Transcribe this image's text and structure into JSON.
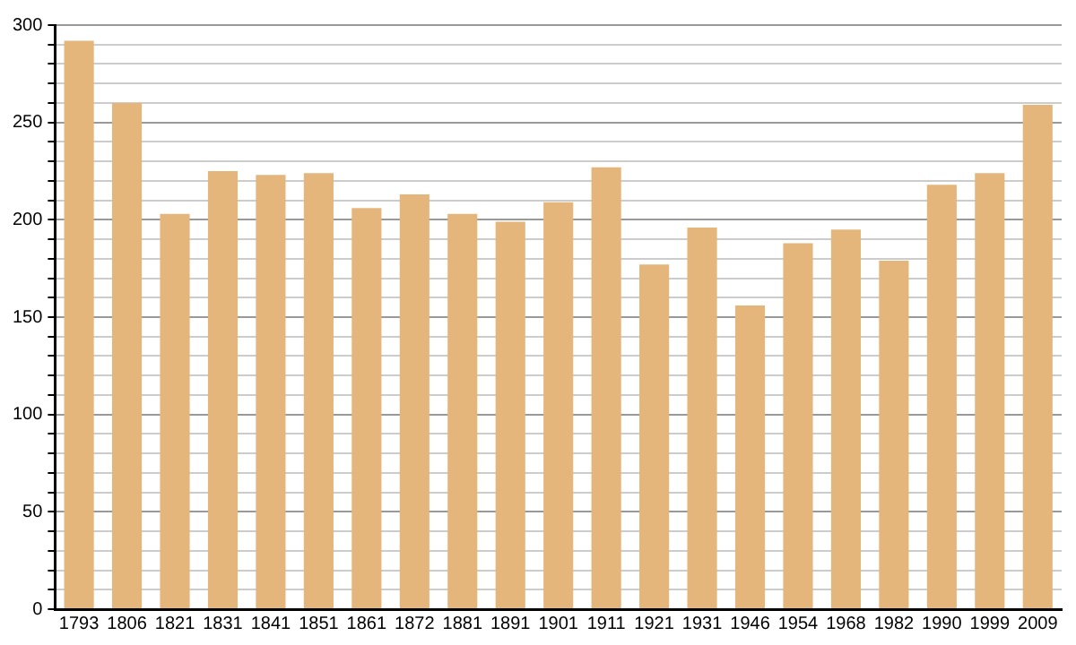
{
  "chart_data": {
    "type": "bar",
    "categories": [
      "1793",
      "1806",
      "1821",
      "1831",
      "1841",
      "1851",
      "1861",
      "1872",
      "1881",
      "1891",
      "1901",
      "1911",
      "1921",
      "1931",
      "1946",
      "1954",
      "1968",
      "1982",
      "1990",
      "1999",
      "2009"
    ],
    "values": [
      292,
      260,
      203,
      225,
      223,
      224,
      206,
      213,
      203,
      199,
      209,
      227,
      177,
      196,
      156,
      188,
      195,
      179,
      218,
      224,
      259
    ],
    "color": "#e5b67c",
    "ylim": [
      0,
      300
    ],
    "yticks": [
      0,
      {
        "value": 10,
        "label": null
      },
      {
        "value": 20,
        "label": null
      },
      {
        "value": 30,
        "label": null
      },
      {
        "value": 40,
        "label": null
      },
      50,
      {
        "value": 60,
        "label": null
      },
      {
        "value": 70,
        "label": null
      },
      {
        "value": 80,
        "label": null
      },
      {
        "value": 90,
        "label": null
      },
      100,
      {
        "value": 110,
        "label": null
      },
      {
        "value": 120,
        "label": null
      },
      {
        "value": 130,
        "label": null
      },
      {
        "value": 140,
        "label": null
      },
      150,
      {
        "value": 160,
        "label": null
      },
      {
        "value": 170,
        "label": null
      },
      {
        "value": 180,
        "label": null
      },
      {
        "value": 190,
        "label": null
      },
      200,
      {
        "value": 210,
        "label": null
      },
      {
        "value": 220,
        "label": null
      },
      {
        "value": 230,
        "label": null
      },
      {
        "value": 240,
        "label": null
      },
      250,
      {
        "value": 260,
        "label": null
      },
      {
        "value": 270,
        "label": null
      },
      {
        "value": 280,
        "label": null
      },
      {
        "value": 290,
        "label": null
      },
      300
    ],
    "grid": "y"
  }
}
